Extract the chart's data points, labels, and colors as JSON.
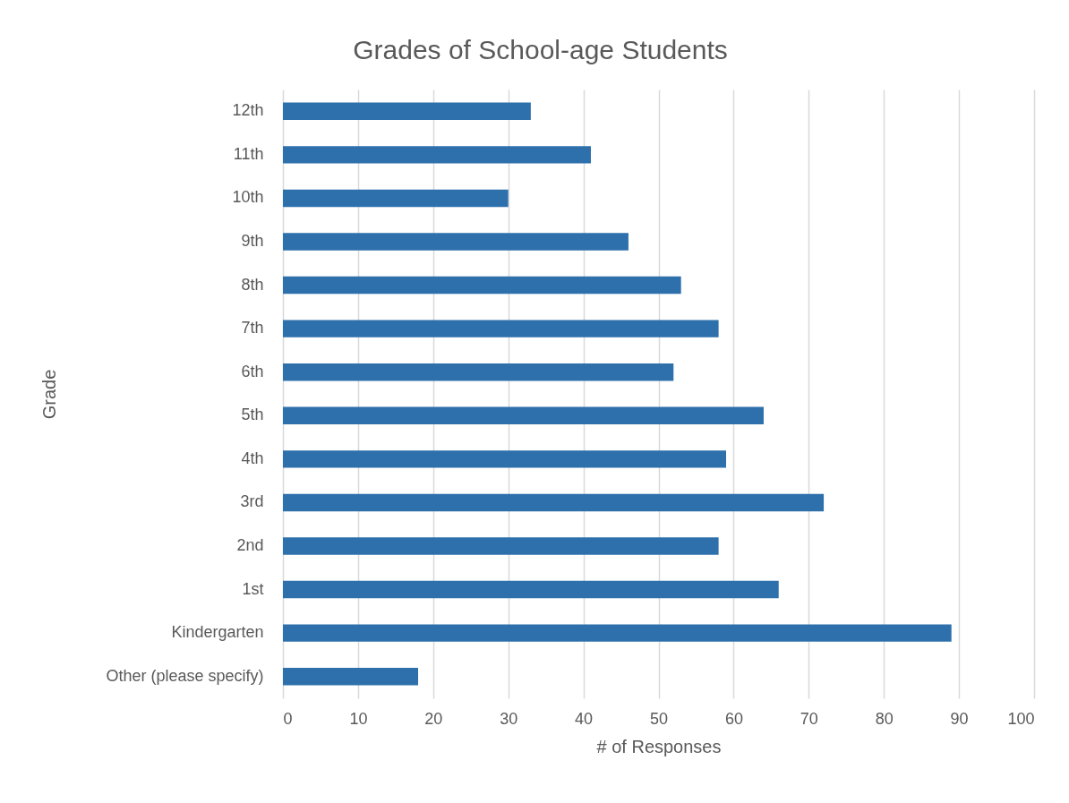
{
  "chart_data": {
    "type": "bar",
    "orientation": "horizontal",
    "title": "Grades of School-age Students",
    "xlabel": "# of Responses",
    "ylabel": "Grade",
    "categories": [
      "12th",
      "11th",
      "10th",
      "9th",
      "8th",
      "7th",
      "6th",
      "5th",
      "4th",
      "3rd",
      "2nd",
      "1st",
      "Kindergarten",
      "Other (please specify)"
    ],
    "values": [
      33,
      41,
      30,
      46,
      53,
      58,
      52,
      64,
      59,
      72,
      58,
      66,
      89,
      18
    ],
    "color": "#2e70ac",
    "xlim": [
      0,
      100
    ],
    "xticks": [
      0,
      10,
      20,
      30,
      40,
      50,
      60,
      70,
      80,
      90,
      100
    ],
    "grid": "x"
  }
}
